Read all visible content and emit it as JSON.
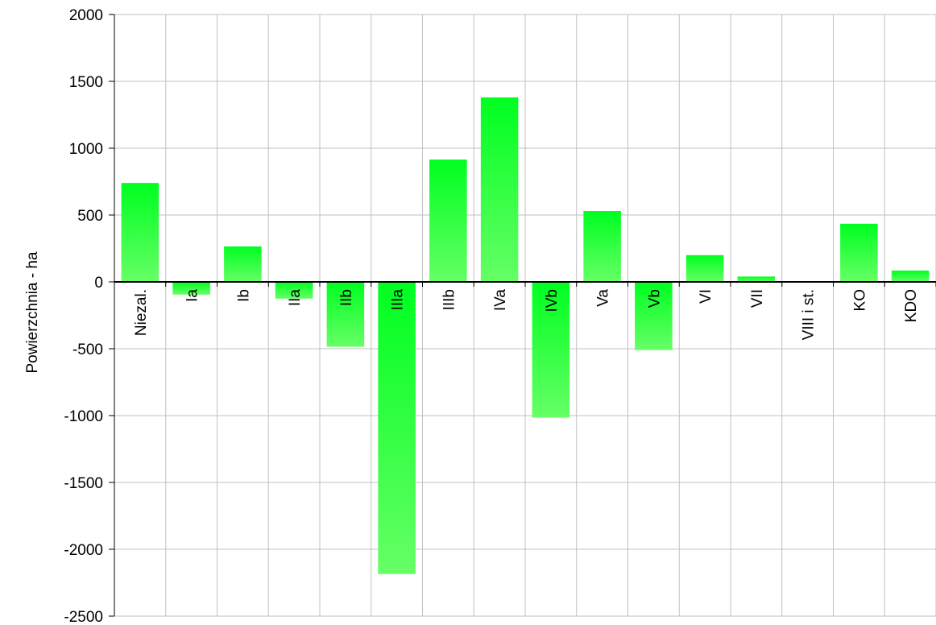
{
  "chart_data": {
    "type": "bar",
    "title": "",
    "xlabel": "",
    "ylabel": "Powierzchnia - ha",
    "ylim": [
      -2500,
      2000
    ],
    "yticks": [
      2000,
      1500,
      1000,
      500,
      0,
      -500,
      -1000,
      -1500,
      -2000,
      -2500
    ],
    "categories": [
      "Niezal.",
      "Ia",
      "Ib",
      "IIa",
      "IIb",
      "IIIa",
      "IIIb",
      "IVa",
      "IVb",
      "Va",
      "Vb",
      "VI",
      "VII",
      "VIII i st.",
      "KO",
      "KDO"
    ],
    "values": [
      740,
      -95,
      265,
      -125,
      -485,
      -2185,
      915,
      1380,
      -1015,
      530,
      -510,
      200,
      40,
      0,
      435,
      85
    ],
    "grid": true,
    "legend": "none",
    "bar_color_top": "#00ff20",
    "bar_color_bottom": "#66ff66"
  }
}
